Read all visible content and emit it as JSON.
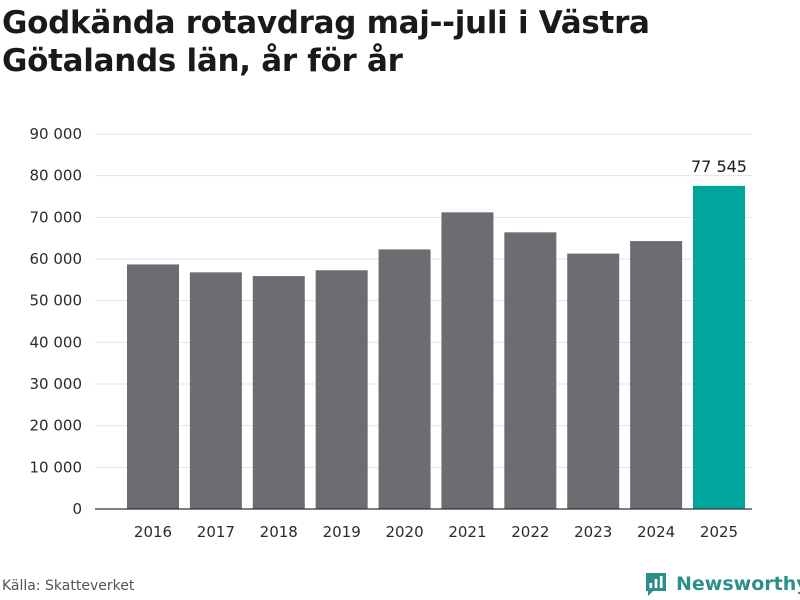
{
  "title": "Godkända rotavdrag maj--juli i Västra Götalands län, år för år",
  "source": "Källa: Skatteverket",
  "brand": {
    "name": "Newsworthy",
    "icon": "newsworthy-logo-icon",
    "color": "#2c8f8a"
  },
  "colors": {
    "bar": "#6d6c72",
    "highlight": "#00a59c",
    "grid": "#e3e3e3",
    "axis": "#333333"
  },
  "chart_data": {
    "type": "bar",
    "title": "Godkända rotavdrag maj--juli i Västra Götalands län, år för år",
    "xlabel": "",
    "ylabel": "",
    "categories": [
      "2016",
      "2017",
      "2018",
      "2019",
      "2020",
      "2021",
      "2022",
      "2023",
      "2024",
      "2025"
    ],
    "values": [
      58700,
      56800,
      55900,
      57300,
      62300,
      71200,
      66400,
      61300,
      64300,
      77545
    ],
    "highlight_index": 9,
    "data_labels": [
      {
        "index": 9,
        "text": "77 545"
      }
    ],
    "ylim": [
      0,
      90000
    ],
    "yticks": [
      0,
      10000,
      20000,
      30000,
      40000,
      50000,
      60000,
      70000,
      80000,
      90000
    ],
    "ytick_labels": [
      "0",
      "10 000",
      "20 000",
      "30 000",
      "40 000",
      "50 000",
      "60 000",
      "70 000",
      "80 000",
      "90 000"
    ],
    "grid": true,
    "legend": "none"
  }
}
